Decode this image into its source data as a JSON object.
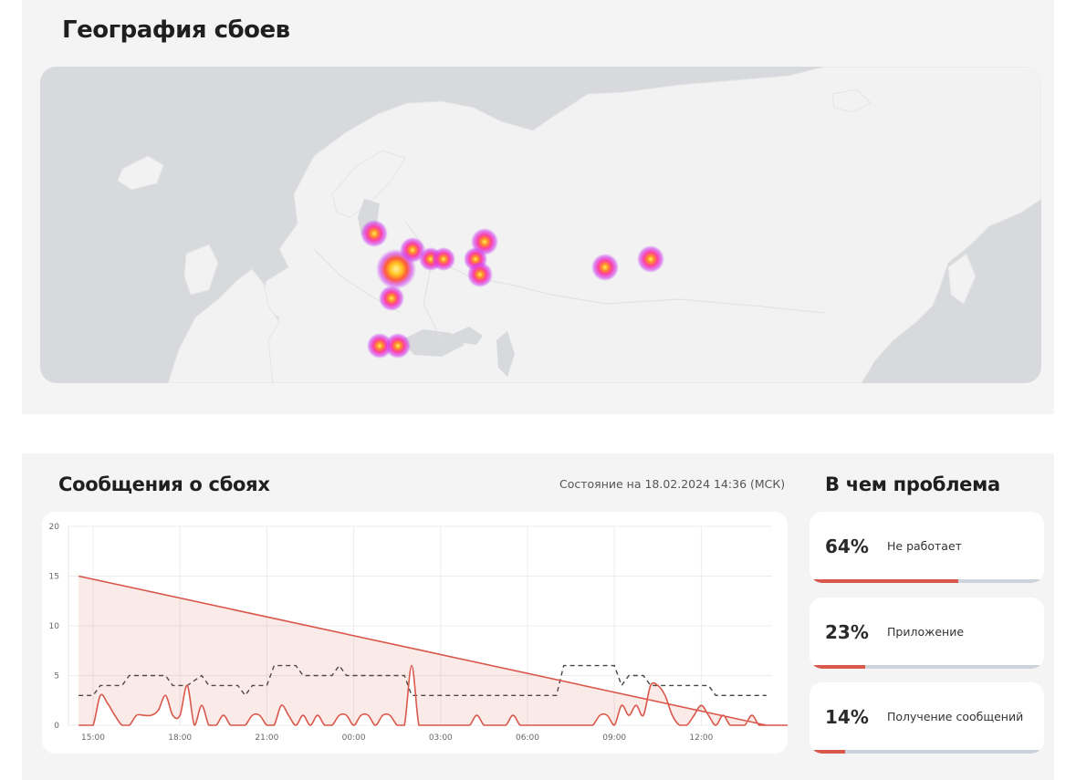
{
  "geo": {
    "title": "География сбоев"
  },
  "messages": {
    "title": "Сообщения о сбоях",
    "status": "Состояние на 18.02.2024 14:36 (МСК)"
  },
  "problems": {
    "title": "В чем проблема",
    "items": [
      {
        "percent_label": "64%",
        "label": "Не работает",
        "fraction": 0.64
      },
      {
        "percent_label": "23%",
        "label": "Приложение",
        "fraction": 0.23
      },
      {
        "percent_label": "14%",
        "label": "Получение сообщений",
        "fraction": 0.14
      }
    ]
  },
  "colors": {
    "accent": "#d9574b",
    "baseline": "#444444"
  },
  "chart_data": {
    "type": "line",
    "x_tick_labels": [
      "15:00",
      "18:00",
      "21:00",
      "00:00",
      "03:00",
      "06:00",
      "09:00",
      "12:00"
    ],
    "y_tick_labels": [
      "0",
      "5",
      "10",
      "15",
      "20"
    ],
    "ylim": [
      0,
      20
    ],
    "grid": true,
    "series": [
      {
        "style": "solid-filled",
        "points": [
          [
            "14:30",
            0
          ],
          [
            "14:45",
            0
          ],
          [
            "15:00",
            0
          ],
          [
            "15:15",
            3
          ],
          [
            "15:30",
            2.2
          ],
          [
            "15:45",
            1
          ],
          [
            "16:00",
            0
          ],
          [
            "16:15",
            0
          ],
          [
            "16:30",
            1
          ],
          [
            "16:45",
            1
          ],
          [
            "17:00",
            1
          ],
          [
            "17:15",
            1.5
          ],
          [
            "17:30",
            3
          ],
          [
            "17:45",
            1
          ],
          [
            "18:00",
            1
          ],
          [
            "18:15",
            4
          ],
          [
            "18:30",
            0
          ],
          [
            "18:45",
            2
          ],
          [
            "19:00",
            0
          ],
          [
            "19:15",
            0
          ],
          [
            "19:30",
            1
          ],
          [
            "19:45",
            0
          ],
          [
            "20:00",
            0
          ],
          [
            "20:15",
            0
          ],
          [
            "20:30",
            1
          ],
          [
            "20:45",
            1
          ],
          [
            "21:00",
            0
          ],
          [
            "21:15",
            0
          ],
          [
            "21:30",
            2
          ],
          [
            "21:45",
            1
          ],
          [
            "22:00",
            0
          ],
          [
            "22:15",
            1
          ],
          [
            "22:30",
            0
          ],
          [
            "22:45",
            1
          ],
          [
            "23:00",
            0
          ],
          [
            "23:15",
            0
          ],
          [
            "23:30",
            1
          ],
          [
            "23:45",
            1
          ],
          [
            "00:00",
            0
          ],
          [
            "00:15",
            1
          ],
          [
            "00:30",
            1
          ],
          [
            "00:45",
            0
          ],
          [
            "01:00",
            1
          ],
          [
            "01:15",
            1
          ],
          [
            "01:30",
            0
          ],
          [
            "01:45",
            0
          ],
          [
            "02:00",
            6
          ],
          [
            "02:15",
            0
          ],
          [
            "02:30",
            0
          ],
          [
            "02:45",
            0
          ],
          [
            "03:00",
            0
          ],
          [
            "03:15",
            0
          ],
          [
            "03:30",
            0
          ],
          [
            "03:45",
            0
          ],
          [
            "04:00",
            0
          ],
          [
            "04:15",
            1
          ],
          [
            "04:30",
            0
          ],
          [
            "04:45",
            0
          ],
          [
            "05:00",
            0
          ],
          [
            "05:15",
            0
          ],
          [
            "05:30",
            1
          ],
          [
            "05:45",
            0
          ],
          [
            "06:00",
            0
          ],
          [
            "06:15",
            0
          ],
          [
            "06:30",
            0
          ],
          [
            "06:45",
            0
          ],
          [
            "07:00",
            0
          ],
          [
            "07:15",
            0
          ],
          [
            "07:30",
            0
          ],
          [
            "07:45",
            0
          ],
          [
            "08:00",
            0
          ],
          [
            "08:15",
            0
          ],
          [
            "08:30",
            1
          ],
          [
            "08:45",
            1
          ],
          [
            "09:00",
            0
          ],
          [
            "09:15",
            2
          ],
          [
            "09:30",
            1
          ],
          [
            "09:45",
            2
          ],
          [
            "10:00",
            1
          ],
          [
            "10:15",
            4
          ],
          [
            "10:30",
            4
          ],
          [
            "10:45",
            3
          ],
          [
            "11:00",
            1
          ],
          [
            "11:15",
            0
          ],
          [
            "11:30",
            0
          ],
          [
            "11:45",
            1
          ],
          [
            "12:00",
            2
          ],
          [
            "12:15",
            1
          ],
          [
            "12:30",
            0
          ],
          [
            "12:45",
            1
          ],
          [
            "13:00",
            0
          ],
          [
            "13:15",
            0
          ],
          [
            "13:30",
            0
          ],
          [
            "13:45",
            1
          ],
          [
            "14:00",
            0
          ],
          [
            "14:15",
            0
          ],
          [
            "14:30",
            15
          ]
        ]
      },
      {
        "style": "dashed-step",
        "points": [
          [
            "14:30",
            3
          ],
          [
            "15:00",
            3
          ],
          [
            "15:15",
            4
          ],
          [
            "16:00",
            4
          ],
          [
            "16:15",
            5
          ],
          [
            "17:30",
            5
          ],
          [
            "17:45",
            4
          ],
          [
            "18:15",
            4
          ],
          [
            "18:45",
            5
          ],
          [
            "19:00",
            4
          ],
          [
            "20:00",
            4
          ],
          [
            "20:15",
            3
          ],
          [
            "20:30",
            4
          ],
          [
            "21:00",
            4
          ],
          [
            "21:15",
            6
          ],
          [
            "22:00",
            6
          ],
          [
            "22:15",
            5
          ],
          [
            "23:15",
            5
          ],
          [
            "23:30",
            6
          ],
          [
            "23:45",
            5
          ],
          [
            "01:45",
            5
          ],
          [
            "02:00",
            3
          ],
          [
            "07:00",
            3
          ],
          [
            "07:15",
            6
          ],
          [
            "09:00",
            6
          ],
          [
            "09:15",
            4
          ],
          [
            "09:30",
            5
          ],
          [
            "10:00",
            5
          ],
          [
            "10:15",
            4
          ],
          [
            "12:15",
            4
          ],
          [
            "12:30",
            3
          ],
          [
            "14:15",
            3
          ]
        ]
      }
    ]
  }
}
